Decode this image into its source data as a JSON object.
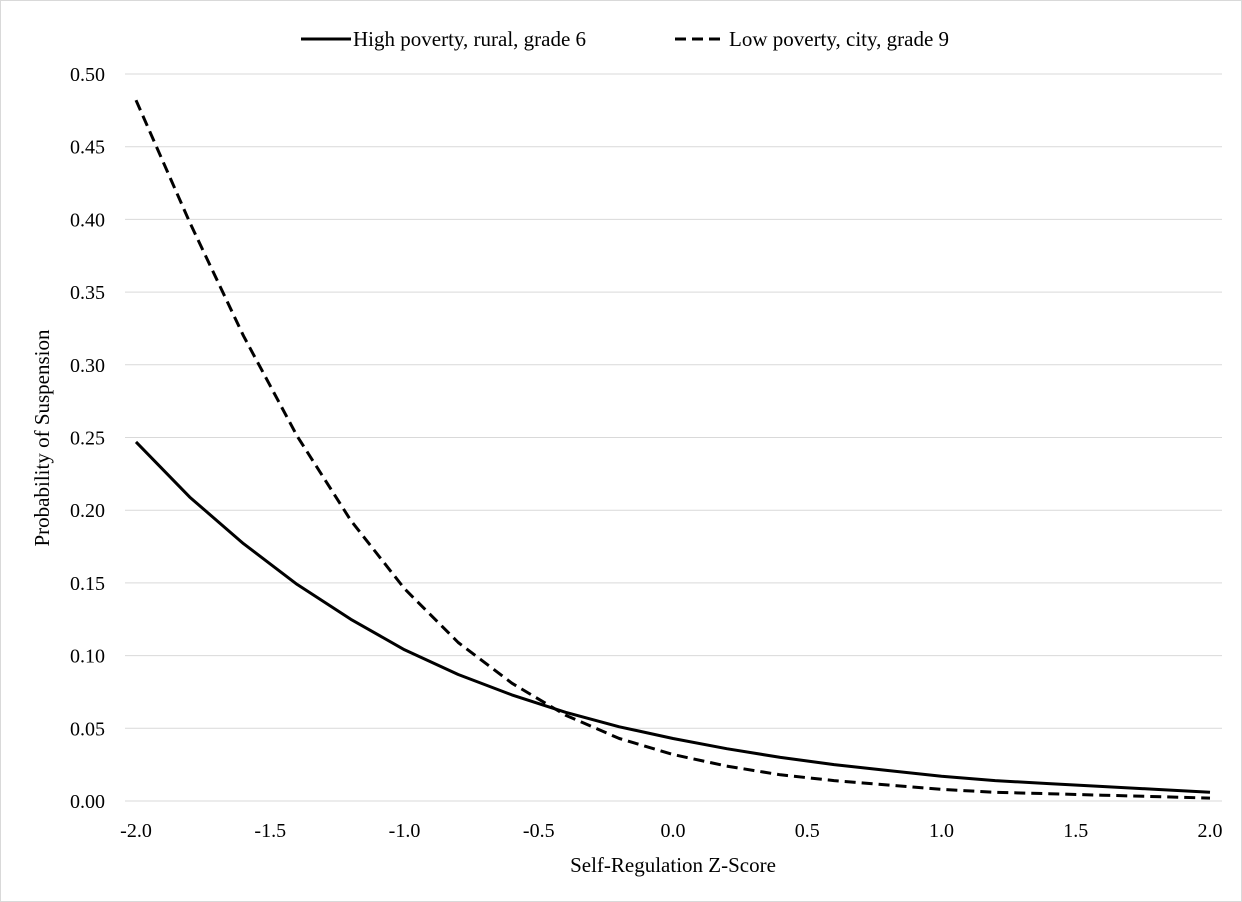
{
  "chart_data": {
    "type": "line",
    "title": "",
    "xlabel": "Self-Regulation  Z-Score",
    "ylabel": "Probability  of Suspension",
    "xlim": [
      -2.0,
      2.0
    ],
    "ylim": [
      0.0,
      0.5
    ],
    "x_ticks": [
      "-2.0",
      "-1.5",
      "-1.0",
      "-0.5",
      "0.0",
      "0.5",
      "1.0",
      "1.5",
      "2.0"
    ],
    "y_ticks": [
      "0.00",
      "0.05",
      "0.10",
      "0.15",
      "0.20",
      "0.25",
      "0.30",
      "0.35",
      "0.40",
      "0.45",
      "0.50"
    ],
    "grid": "horizontal",
    "legend_position": "top",
    "x": [
      -2.0,
      -1.8,
      -1.6,
      -1.4,
      -1.2,
      -1.0,
      -0.8,
      -0.6,
      -0.4,
      -0.2,
      0.0,
      0.2,
      0.4,
      0.6,
      0.8,
      1.0,
      1.2,
      1.4,
      1.6,
      1.8,
      2.0
    ],
    "series": [
      {
        "name": "High poverty, rural, grade 6",
        "style": "solid",
        "color": "#000000",
        "values": [
          0.247,
          0.209,
          0.177,
          0.149,
          0.125,
          0.104,
          0.087,
          0.073,
          0.061,
          0.051,
          0.043,
          0.036,
          0.03,
          0.025,
          0.021,
          0.017,
          0.014,
          0.012,
          0.01,
          0.008,
          0.006
        ]
      },
      {
        "name": "Low poverty, city, grade 9",
        "style": "dashed",
        "color": "#000000",
        "values": [
          0.482,
          0.398,
          0.32,
          0.251,
          0.193,
          0.146,
          0.109,
          0.081,
          0.059,
          0.043,
          0.032,
          0.024,
          0.018,
          0.014,
          0.011,
          0.008,
          0.006,
          0.005,
          0.004,
          0.003,
          0.002
        ]
      }
    ]
  },
  "colors": {
    "gridline": "#d9d9d9",
    "axis": "#d9d9d9",
    "text": "#000000"
  }
}
